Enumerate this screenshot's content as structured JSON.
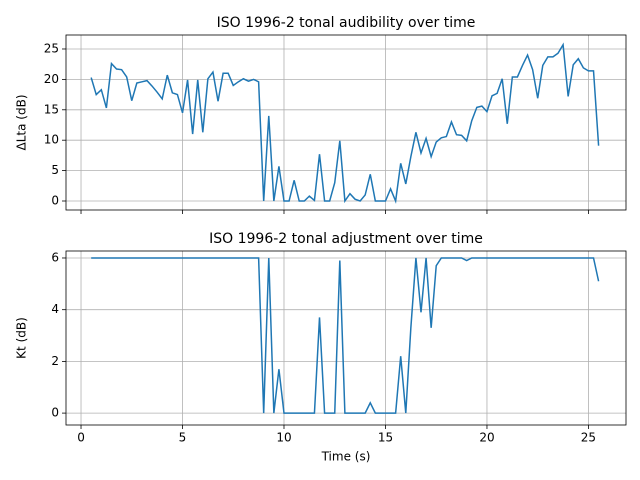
{
  "chart_data": [
    {
      "type": "line",
      "title": "ISO 1996-2 tonal audibility over time",
      "ylabel": "ΔLta (dB)",
      "x": [
        0.5,
        0.75,
        1,
        1.25,
        1.5,
        1.75,
        2,
        2.25,
        2.5,
        2.75,
        3,
        3.25,
        3.5,
        3.75,
        4,
        4.25,
        4.5,
        4.75,
        5,
        5.25,
        5.5,
        5.75,
        6,
        6.25,
        6.5,
        6.75,
        7,
        7.25,
        7.5,
        7.75,
        8,
        8.25,
        8.5,
        8.75,
        9,
        9.25,
        9.5,
        9.75,
        10,
        10.25,
        10.5,
        10.75,
        11,
        11.25,
        11.5,
        11.75,
        12,
        12.25,
        12.5,
        12.75,
        13,
        13.25,
        13.5,
        13.75,
        14,
        14.25,
        14.5,
        14.75,
        15,
        15.25,
        15.5,
        15.75,
        16,
        16.25,
        16.5,
        16.75,
        17,
        17.25,
        17.5,
        17.75,
        18,
        18.25,
        18.5,
        18.75,
        19,
        19.25,
        19.5,
        19.75,
        20,
        20.25,
        20.5,
        20.75,
        21,
        21.25,
        21.5,
        21.75,
        22,
        22.25,
        22.5,
        22.75,
        23,
        23.25,
        23.5,
        23.75,
        24,
        24.25,
        24.5,
        24.75,
        25,
        25.25,
        25.5
      ],
      "series": [
        {
          "color": "#1f77b4",
          "values": [
            20.3,
            17.5,
            18.3,
            15.3,
            22.6,
            21.7,
            21.6,
            20.4,
            16.5,
            19.4,
            19.6,
            19.8,
            18.9,
            17.9,
            16.8,
            20.7,
            17.8,
            17.5,
            14.5,
            19.9,
            11.0,
            19.9,
            11.3,
            20.1,
            21.2,
            16.4,
            21.0,
            21.0,
            19.0,
            19.6,
            20.1,
            19.7,
            20.0,
            19.6,
            0,
            14.0,
            0,
            5.7,
            0,
            0,
            3.4,
            0,
            0,
            0.8,
            0.1,
            7.7,
            0,
            0,
            3.0,
            9.9,
            0,
            1.2,
            0.3,
            0,
            1.0,
            4.4,
            0,
            0,
            0,
            2.0,
            0,
            6.2,
            2.8,
            7.3,
            11.3,
            7.9,
            10.3,
            7.3,
            9.7,
            10.4,
            10.6,
            13.0,
            10.9,
            10.8,
            9.9,
            13.2,
            15.4,
            15.6,
            14.7,
            17.3,
            17.7,
            20.1,
            12.7,
            20.4,
            20.4,
            22.3,
            24.0,
            21.6,
            16.9,
            22.3,
            23.7,
            23.7,
            24.3,
            25.7,
            17.2,
            22.4,
            23.4,
            21.9,
            21.4,
            21.4,
            9.1
          ]
        }
      ],
      "xlim": [
        -0.74,
        26.85
      ],
      "xticks": [
        0,
        5,
        10,
        15,
        20,
        25
      ],
      "ylim": [
        -1.48,
        27.3
      ],
      "yticks": [
        0,
        5,
        10,
        15,
        20,
        25
      ],
      "grid": true
    },
    {
      "type": "line",
      "title": "ISO 1996-2 tonal adjustment over time",
      "ylabel": "Kt (dB)",
      "xlabel": "Time (s)",
      "x": [
        0.5,
        0.75,
        1,
        1.25,
        1.5,
        1.75,
        2,
        2.25,
        2.5,
        2.75,
        3,
        3.25,
        3.5,
        3.75,
        4,
        4.25,
        4.5,
        4.75,
        5,
        5.25,
        5.5,
        5.75,
        6,
        6.25,
        6.5,
        6.75,
        7,
        7.25,
        7.5,
        7.75,
        8,
        8.25,
        8.5,
        8.75,
        9,
        9.25,
        9.5,
        9.75,
        10,
        10.25,
        10.5,
        10.75,
        11,
        11.25,
        11.5,
        11.75,
        12,
        12.25,
        12.5,
        12.75,
        13,
        13.25,
        13.5,
        13.75,
        14,
        14.25,
        14.5,
        14.75,
        15,
        15.25,
        15.5,
        15.75,
        16,
        16.25,
        16.5,
        16.75,
        17,
        17.25,
        17.5,
        17.75,
        18,
        18.25,
        18.5,
        18.75,
        19,
        19.25,
        19.5,
        19.75,
        20,
        20.25,
        20.5,
        20.75,
        21,
        21.25,
        21.5,
        21.75,
        22,
        22.25,
        22.5,
        22.75,
        23,
        23.25,
        23.5,
        23.75,
        24,
        24.25,
        24.5,
        24.75,
        25,
        25.25,
        25.5
      ],
      "series": [
        {
          "color": "#1f77b4",
          "values": [
            6,
            6,
            6,
            6,
            6,
            6,
            6,
            6,
            6,
            6,
            6,
            6,
            6,
            6,
            6,
            6,
            6,
            6,
            6,
            6,
            6,
            6,
            6,
            6,
            6,
            6,
            6,
            6,
            6,
            6,
            6,
            6,
            6,
            6,
            0,
            6,
            0,
            1.7,
            0,
            0,
            0,
            0,
            0,
            0,
            0,
            3.7,
            0,
            0,
            0,
            5.9,
            0,
            0,
            0,
            0,
            0,
            0.4,
            0,
            0,
            0,
            0,
            0,
            2.2,
            0,
            3.3,
            6,
            3.9,
            6,
            3.3,
            5.7,
            6,
            6,
            6,
            6,
            6,
            5.9,
            6,
            6,
            6,
            6,
            6,
            6,
            6,
            6,
            6,
            6,
            6,
            6,
            6,
            6,
            6,
            6,
            6,
            6,
            6,
            6,
            6,
            6,
            6,
            6,
            6,
            5.1
          ]
        }
      ],
      "xlim": [
        -0.74,
        26.85
      ],
      "xticks": [
        0,
        5,
        10,
        15,
        20,
        25
      ],
      "ylim": [
        -0.46,
        6.27
      ],
      "yticks": [
        0,
        2,
        4,
        6
      ],
      "grid": true
    }
  ]
}
